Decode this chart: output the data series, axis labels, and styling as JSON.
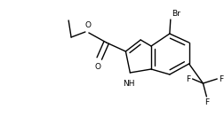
{
  "bg_color": "#ffffff",
  "line_color": "#000000",
  "lw": 1.0,
  "fs": 6.5,
  "figsize": [
    2.52,
    1.32
  ],
  "dpi": 100,
  "xlim": [
    0,
    252
  ],
  "ylim": [
    0,
    132
  ]
}
